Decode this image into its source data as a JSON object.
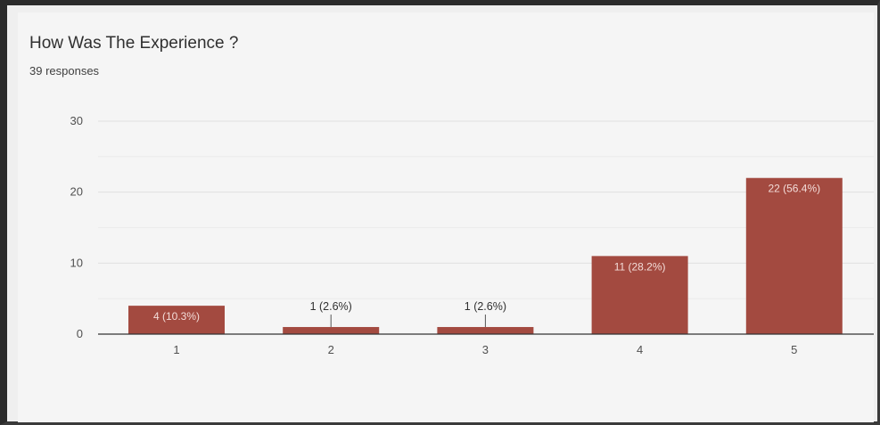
{
  "chart_data": {
    "type": "bar",
    "title": "How Was The Experience ?",
    "subtitle": "39 responses",
    "categories": [
      "1",
      "2",
      "3",
      "4",
      "5"
    ],
    "values": [
      4,
      1,
      1,
      11,
      22
    ],
    "data_labels": [
      "4 (10.3%)",
      "1 (2.6%)",
      "1 (2.6%)",
      "11 (28.2%)",
      "22 (56.4%)"
    ],
    "yticks": [
      "0",
      "10",
      "20",
      "30"
    ],
    "ylim": [
      0,
      30
    ],
    "xlabel": "",
    "ylabel": "",
    "grid": true,
    "colors": {
      "bar": "#a34a40",
      "grid": "#e0e0e0",
      "axis": "#333333"
    }
  }
}
